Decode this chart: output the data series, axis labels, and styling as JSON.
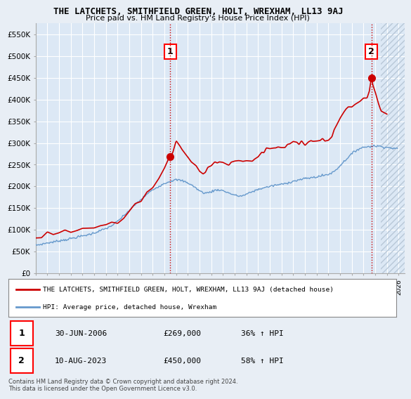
{
  "title": "THE LATCHETS, SMITHFIELD GREEN, HOLT, WREXHAM, LL13 9AJ",
  "subtitle": "Price paid vs. HM Land Registry's House Price Index (HPI)",
  "red_label": "THE LATCHETS, SMITHFIELD GREEN, HOLT, WREXHAM, LL13 9AJ (detached house)",
  "blue_label": "HPI: Average price, detached house, Wrexham",
  "annotation1": {
    "label": "1",
    "date": "30-JUN-2006",
    "price": "£269,000",
    "hpi": "36% ↑ HPI"
  },
  "annotation2": {
    "label": "2",
    "date": "10-AUG-2023",
    "price": "£450,000",
    "hpi": "58% ↑ HPI"
  },
  "footer": "Contains HM Land Registry data © Crown copyright and database right 2024.\nThis data is licensed under the Open Government Licence v3.0.",
  "ylim": [
    0,
    575000
  ],
  "yticks": [
    0,
    50000,
    100000,
    150000,
    200000,
    250000,
    300000,
    350000,
    400000,
    450000,
    500000,
    550000
  ],
  "xlim_start": 1995.0,
  "xlim_end": 2026.5,
  "background_color": "#e8eef5",
  "plot_bg_color": "#dce8f5",
  "grid_color": "#c0cfe0",
  "hatch_color": "#b8c8d8",
  "red_color": "#cc0000",
  "blue_color": "#6699cc",
  "ann1_x": 2006.5,
  "ann1_y": 269000,
  "ann2_x": 2023.67,
  "ann2_y": 450000,
  "hatch_start": 2024.5
}
